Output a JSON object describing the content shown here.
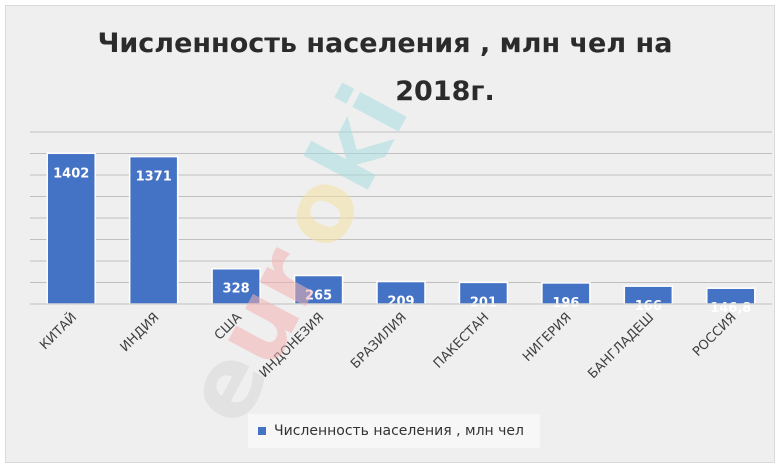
{
  "chart_data": {
    "type": "bar",
    "title_lines": [
      "Численность населения , млн чел на",
      "2018г."
    ],
    "categories": [
      "КИТАЙ",
      "ИНДИЯ",
      "США",
      "ИНДОНЕЗИЯ",
      "БРАЗИЛИЯ",
      "ПАКЕСТАН",
      "НИГЕРИЯ",
      "БАНГЛАДЕШ",
      "РОССИЯ"
    ],
    "values": [
      1402,
      1371,
      328,
      265,
      209,
      201,
      196,
      166,
      146.8
    ],
    "value_labels": [
      "1402",
      "1371",
      "328",
      "265",
      "209",
      "201",
      "196",
      "166",
      "146,8"
    ],
    "series": [
      {
        "name": "Численность населения , млн чел",
        "values": [
          1402,
          1371,
          328,
          265,
          209,
          201,
          196,
          166,
          146.8
        ],
        "color": "#4472c4"
      }
    ],
    "ylim": [
      0,
      1600
    ],
    "grid": true,
    "legend_position": "bottom",
    "data_label_color": "#ffffff",
    "gridline_color": "#bfbfbf"
  },
  "watermark": {
    "text": "euroki",
    "letters": [
      "e",
      "u",
      "r",
      "o",
      "k",
      "i"
    ],
    "colors": [
      "#d9d9d9",
      "#f3b3b3",
      "#f3b3b3",
      "#f6e2a2",
      "#a7dde0",
      "#a7dde0"
    ]
  }
}
